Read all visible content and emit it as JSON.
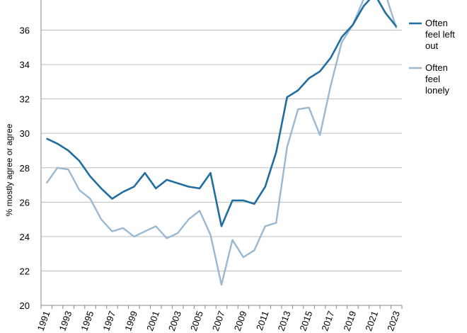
{
  "chart_data": {
    "type": "line",
    "title": "",
    "xlabel": "",
    "ylabel": "% mostly agree or agree",
    "ylim": [
      20,
      38
    ],
    "yticks": [
      20,
      22,
      24,
      26,
      28,
      30,
      32,
      34,
      36
    ],
    "xlim": [
      1991,
      2023
    ],
    "xticks": [
      "1991",
      "1993",
      "1995",
      "1997",
      "1999",
      "2001",
      "2003",
      "2005",
      "2007",
      "2009",
      "2011",
      "2013",
      "2015",
      "2017",
      "2019",
      "2021",
      "2023"
    ],
    "grid": true,
    "legend_position": "right",
    "x": [
      1991,
      1992,
      1993,
      1994,
      1995,
      1996,
      1997,
      1998,
      1999,
      2000,
      2001,
      2002,
      2003,
      2004,
      2005,
      2006,
      2007,
      2008,
      2009,
      2010,
      2011,
      2012,
      2013,
      2014,
      2015,
      2016,
      2017,
      2018,
      2019,
      2020,
      2021,
      2022,
      2023
    ],
    "series": [
      {
        "name": "Often feel left out",
        "legend_lines": [
          "Often",
          "feel left",
          "out"
        ],
        "color": "#1f6e9f",
        "values": [
          29.7,
          29.4,
          29.0,
          28.4,
          27.5,
          26.8,
          26.2,
          26.6,
          26.9,
          27.7,
          26.8,
          27.3,
          27.1,
          26.9,
          26.8,
          27.7,
          24.6,
          26.1,
          26.1,
          25.9,
          26.9,
          28.9,
          32.1,
          32.5,
          33.2,
          33.6,
          34.4,
          35.6,
          36.3,
          37.4,
          38.1,
          37.0,
          36.2
        ]
      },
      {
        "name": "Often feel lonely",
        "legend_lines": [
          "Often",
          "feel",
          "lonely"
        ],
        "color": "#9bb8d3",
        "values": [
          27.1,
          28.0,
          27.9,
          26.7,
          26.2,
          25.0,
          24.3,
          24.5,
          24.0,
          24.3,
          24.6,
          23.9,
          24.2,
          25.0,
          25.5,
          24.1,
          21.2,
          23.8,
          22.8,
          23.2,
          24.6,
          24.8,
          29.2,
          31.4,
          31.5,
          29.9,
          32.8,
          35.3,
          36.3,
          37.8,
          38.1,
          38.1,
          36.1
        ]
      }
    ]
  }
}
